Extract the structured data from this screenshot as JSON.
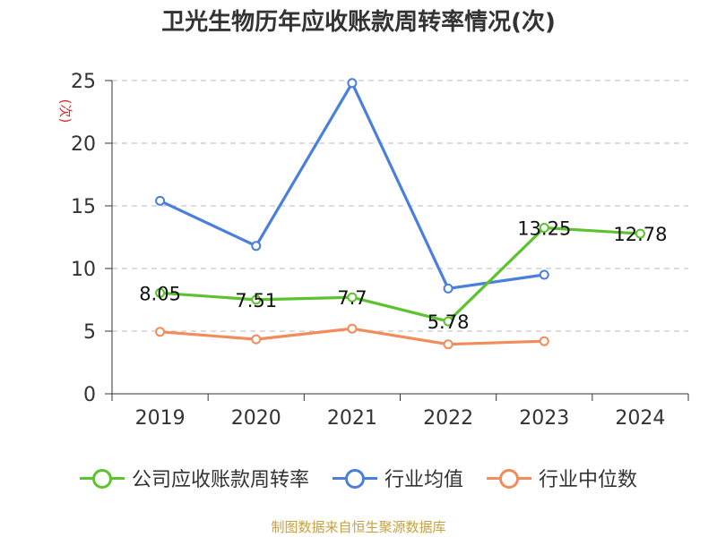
{
  "chart_data": {
    "type": "line",
    "title": "卫光生物历年应收账款周转率情况(次)",
    "ylabel": "(次)",
    "xlabel": "",
    "categories": [
      "2019",
      "2020",
      "2021",
      "2022",
      "2023",
      "2024"
    ],
    "ylim": [
      0,
      25
    ],
    "yticks": [
      0,
      5,
      10,
      15,
      20,
      25
    ],
    "grid": true,
    "legend_position": "bottom",
    "series": [
      {
        "name": "公司应收账款周转率",
        "color": "#5cc22e",
        "values": [
          8.05,
          7.51,
          7.7,
          5.78,
          13.25,
          12.78
        ],
        "labels": [
          "8.05",
          "7.51",
          "7.7",
          "5.78",
          "13.25",
          "12.78"
        ]
      },
      {
        "name": "行业均值",
        "color": "#4a7fdc",
        "values": [
          15.4,
          11.8,
          24.8,
          8.4,
          9.5,
          null
        ]
      },
      {
        "name": "行业中位数",
        "color": "#f28c5a",
        "values": [
          4.95,
          4.35,
          5.2,
          3.95,
          4.2,
          null
        ]
      }
    ]
  },
  "source": "制图数据来自恒生聚源数据库"
}
